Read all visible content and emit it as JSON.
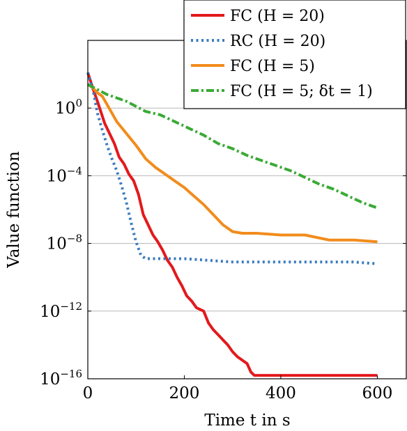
{
  "chart_data": {
    "type": "line",
    "xlabel": "Time t in s",
    "ylabel": "Value function",
    "xlim": [
      0,
      660
    ],
    "ylim": [
      -16,
      4
    ],
    "y_scale": "log10",
    "y_grid": true,
    "x_grid": false,
    "legend_position": "top-right",
    "x_ticks": [
      {
        "value": 0,
        "label": "0"
      },
      {
        "value": 200,
        "label": "200"
      },
      {
        "value": 400,
        "label": "400"
      },
      {
        "value": 600,
        "label": "600"
      }
    ],
    "y_ticks": [
      {
        "exp": 0,
        "base": "10",
        "sup": "0"
      },
      {
        "exp": -4,
        "base": "10",
        "sup": "−4"
      },
      {
        "exp": -8,
        "base": "10",
        "sup": "−8"
      },
      {
        "exp": -12,
        "base": "10",
        "sup": "−12"
      },
      {
        "exp": -16,
        "base": "10",
        "sup": "−16"
      }
    ],
    "series": [
      {
        "name": "FC (H = 20)",
        "color": "#e3191c",
        "dash": "solid",
        "points": [
          [
            0,
            2.1
          ],
          [
            10,
            1.2
          ],
          [
            20,
            0.4
          ],
          [
            35,
            -0.9
          ],
          [
            45,
            -1.5
          ],
          [
            55,
            -2.1
          ],
          [
            65,
            -2.9
          ],
          [
            75,
            -3.3
          ],
          [
            85,
            -3.9
          ],
          [
            95,
            -4.3
          ],
          [
            105,
            -5.1
          ],
          [
            115,
            -6.3
          ],
          [
            125,
            -6.9
          ],
          [
            135,
            -7.5
          ],
          [
            145,
            -7.9
          ],
          [
            155,
            -8.4
          ],
          [
            165,
            -9.0
          ],
          [
            175,
            -9.4
          ],
          [
            185,
            -10.0
          ],
          [
            195,
            -10.5
          ],
          [
            205,
            -11.1
          ],
          [
            215,
            -11.4
          ],
          [
            225,
            -11.8
          ],
          [
            240,
            -12.0
          ],
          [
            250,
            -12.7
          ],
          [
            260,
            -13.1
          ],
          [
            270,
            -13.4
          ],
          [
            280,
            -13.7
          ],
          [
            290,
            -14.0
          ],
          [
            300,
            -14.4
          ],
          [
            310,
            -14.7
          ],
          [
            320,
            -14.9
          ],
          [
            330,
            -15.1
          ],
          [
            338,
            -15.6
          ],
          [
            345,
            -15.8
          ],
          [
            350,
            -15.8
          ],
          [
            400,
            -15.8
          ],
          [
            500,
            -15.8
          ],
          [
            600,
            -15.8
          ]
        ]
      },
      {
        "name": "RC (H = 20)",
        "color": "#3a7bbf",
        "dash": "dotted",
        "points": [
          [
            0,
            2.1
          ],
          [
            10,
            1.2
          ],
          [
            20,
            -0.3
          ],
          [
            30,
            -1.3
          ],
          [
            40,
            -2.2
          ],
          [
            50,
            -3.0
          ],
          [
            60,
            -3.7
          ],
          [
            70,
            -4.6
          ],
          [
            80,
            -5.6
          ],
          [
            90,
            -6.8
          ],
          [
            100,
            -7.9
          ],
          [
            110,
            -8.7
          ],
          [
            120,
            -8.9
          ],
          [
            150,
            -8.9
          ],
          [
            200,
            -8.9
          ],
          [
            250,
            -9.0
          ],
          [
            300,
            -9.1
          ],
          [
            350,
            -9.1
          ],
          [
            400,
            -9.1
          ],
          [
            450,
            -9.1
          ],
          [
            500,
            -9.1
          ],
          [
            550,
            -9.1
          ],
          [
            600,
            -9.2
          ]
        ]
      },
      {
        "name": "FC (H = 5)",
        "color": "#f28c1c",
        "dash": "solid",
        "points": [
          [
            0,
            1.4
          ],
          [
            10,
            1.2
          ],
          [
            20,
            0.9
          ],
          [
            30,
            0.7
          ],
          [
            40,
            0.2
          ],
          [
            60,
            -0.8
          ],
          [
            80,
            -1.5
          ],
          [
            100,
            -2.2
          ],
          [
            120,
            -3.0
          ],
          [
            140,
            -3.5
          ],
          [
            160,
            -3.9
          ],
          [
            180,
            -4.3
          ],
          [
            200,
            -4.7
          ],
          [
            220,
            -5.2
          ],
          [
            240,
            -5.7
          ],
          [
            260,
            -6.3
          ],
          [
            280,
            -6.9
          ],
          [
            300,
            -7.3
          ],
          [
            320,
            -7.4
          ],
          [
            350,
            -7.4
          ],
          [
            400,
            -7.5
          ],
          [
            450,
            -7.5
          ],
          [
            500,
            -7.8
          ],
          [
            550,
            -7.8
          ],
          [
            600,
            -7.9
          ]
        ]
      },
      {
        "name": "FC (H = 5; δt = 1)",
        "color": "#3aaa35",
        "dash": "dashdot",
        "points": [
          [
            0,
            1.4
          ],
          [
            20,
            1.1
          ],
          [
            40,
            0.8
          ],
          [
            60,
            0.6
          ],
          [
            80,
            0.4
          ],
          [
            100,
            0.1
          ],
          [
            120,
            -0.2
          ],
          [
            150,
            -0.4
          ],
          [
            180,
            -0.8
          ],
          [
            210,
            -1.2
          ],
          [
            240,
            -1.6
          ],
          [
            270,
            -2.1
          ],
          [
            300,
            -2.4
          ],
          [
            330,
            -2.8
          ],
          [
            360,
            -3.1
          ],
          [
            390,
            -3.4
          ],
          [
            420,
            -3.7
          ],
          [
            450,
            -4.1
          ],
          [
            480,
            -4.5
          ],
          [
            510,
            -4.8
          ],
          [
            540,
            -5.2
          ],
          [
            570,
            -5.6
          ],
          [
            600,
            -5.9
          ]
        ]
      }
    ]
  }
}
